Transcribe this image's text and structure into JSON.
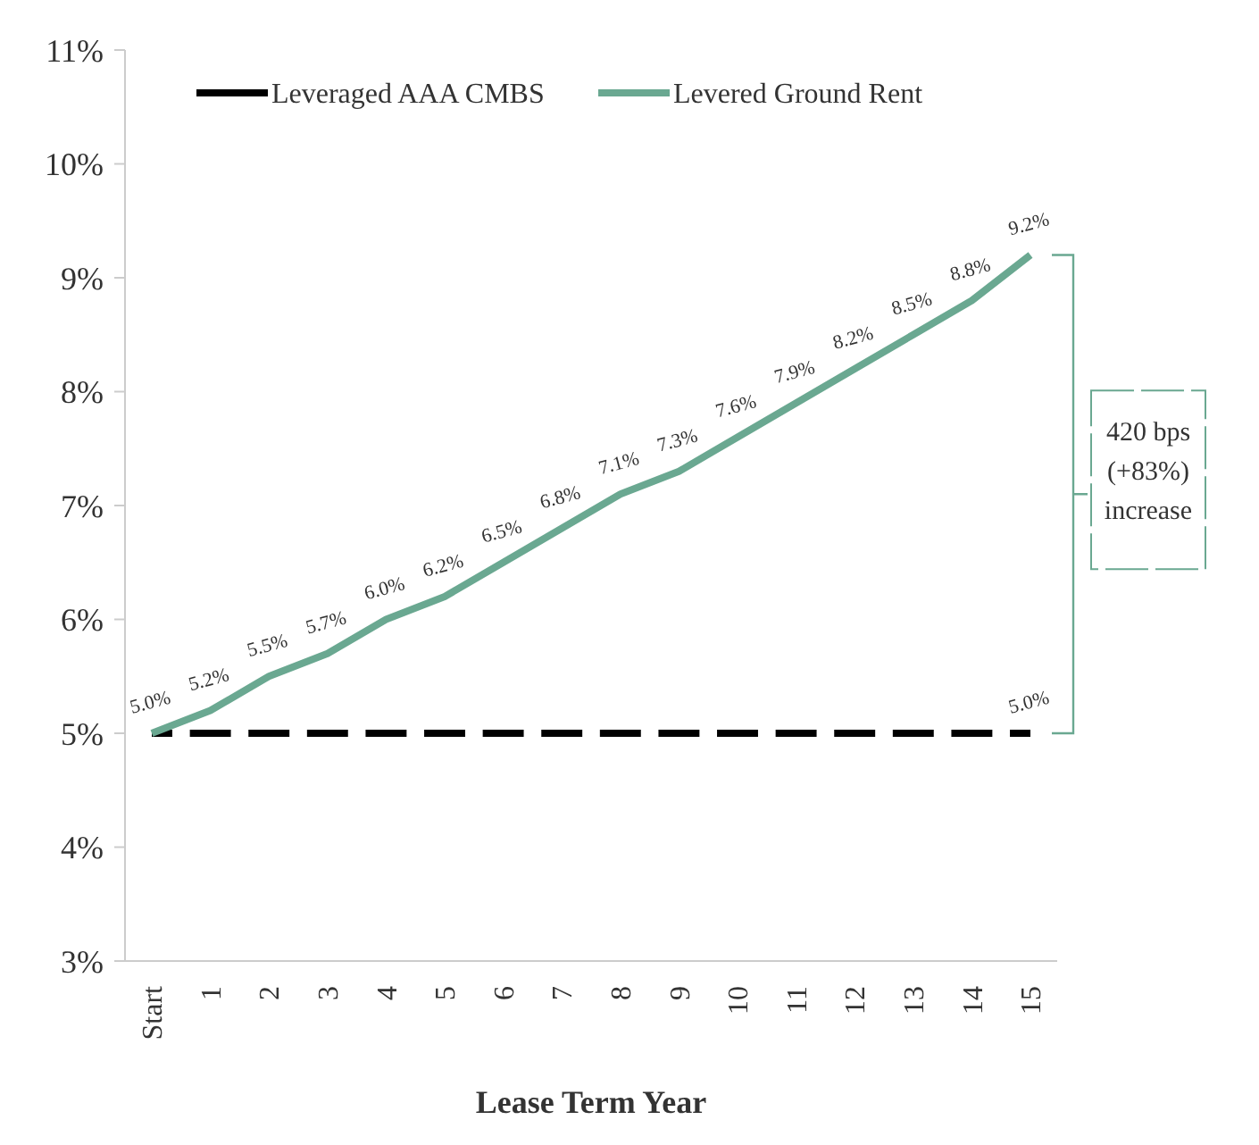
{
  "chart_data": {
    "type": "line",
    "xlabel": "Lease Term Year",
    "categories": [
      "Start",
      "1",
      "2",
      "3",
      "4",
      "5",
      "6",
      "7",
      "8",
      "9",
      "10",
      "11",
      "12",
      "13",
      "14",
      "15"
    ],
    "series": [
      {
        "name": "Leveraged AAA CMBS",
        "color": "#000000",
        "line_style": "dashed",
        "values": [
          5.0,
          5.0,
          5.0,
          5.0,
          5.0,
          5.0,
          5.0,
          5.0,
          5.0,
          5.0,
          5.0,
          5.0,
          5.0,
          5.0,
          5.0,
          5.0
        ],
        "value_labels": [
          null,
          null,
          null,
          null,
          null,
          null,
          null,
          null,
          null,
          null,
          null,
          null,
          null,
          null,
          null,
          "5.0%"
        ]
      },
      {
        "name": "Levered Ground Rent",
        "color": "#6aa891",
        "line_style": "solid",
        "values": [
          5.0,
          5.2,
          5.5,
          5.7,
          6.0,
          6.2,
          6.5,
          6.8,
          7.1,
          7.3,
          7.6,
          7.9,
          8.2,
          8.5,
          8.8,
          9.2
        ],
        "value_labels": [
          "5.0%",
          "5.2%",
          "5.5%",
          "5.7%",
          "6.0%",
          "6.2%",
          "6.5%",
          "6.8%",
          "7.1%",
          "7.3%",
          "7.6%",
          "7.9%",
          "8.2%",
          "8.5%",
          "8.8%",
          "9.2%"
        ]
      }
    ],
    "ylim": [
      3,
      11
    ],
    "yticks": [
      {
        "value": 3,
        "label": "3%"
      },
      {
        "value": 4,
        "label": "4%"
      },
      {
        "value": 5,
        "label": "5%"
      },
      {
        "value": 6,
        "label": "6%"
      },
      {
        "value": 7,
        "label": "7%"
      },
      {
        "value": 8,
        "label": "8%"
      },
      {
        "value": 9,
        "label": "9%"
      },
      {
        "value": 10,
        "label": "10%"
      },
      {
        "value": 11,
        "label": "11%"
      }
    ],
    "grid": false,
    "legend": "top",
    "marker": "none",
    "annotations": [
      "420 bps (+83%) increase"
    ]
  }
}
